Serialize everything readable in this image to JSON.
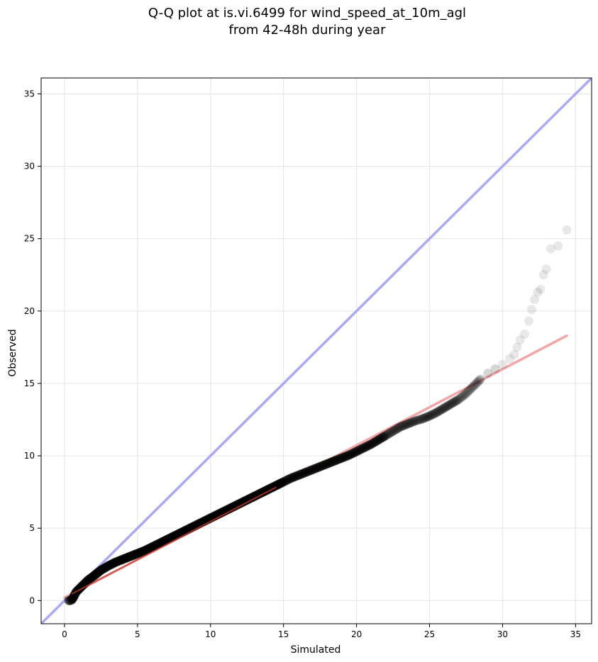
{
  "chart_data": {
    "type": "scatter",
    "title_line1": "Q-Q plot at is.vi.6499 for wind_speed_at_10m_agl",
    "title_line2": "from 42-48h during year",
    "xlabel": "Simulated",
    "ylabel": "Observed",
    "xlim": [
      -1.6,
      36.1
    ],
    "ylim": [
      -1.6,
      36.1
    ],
    "xticks": [
      0,
      5,
      10,
      15,
      20,
      25,
      30,
      35
    ],
    "yticks": [
      0,
      5,
      10,
      15,
      20,
      25,
      30,
      35
    ],
    "grid": true,
    "colors": {
      "points": "#000000",
      "one_to_one_line": "#a9a9f5",
      "fit_line": "#f2a6a6",
      "fit_line_dense": "#c0392b",
      "grid": "#e8e8e8",
      "axes": "#000000"
    },
    "one_to_one_line": {
      "name": "",
      "x": [
        -1.6,
        36.1
      ],
      "y": [
        -1.6,
        36.1
      ]
    },
    "fit_line": {
      "name": "",
      "x": [
        0.0,
        34.4
      ],
      "y": [
        0.2,
        18.3
      ]
    },
    "series": [
      {
        "name": "",
        "x": [
          0.3,
          0.4,
          0.5,
          0.6,
          0.7,
          0.8,
          1.0,
          1.3,
          1.6,
          2.0,
          2.5,
          3.0,
          3.5,
          4.0,
          4.5,
          5.0,
          5.5,
          6.0,
          6.5,
          7.0,
          7.5,
          8.0,
          8.5,
          9.0,
          9.5,
          10.0,
          10.5,
          11.0,
          11.5,
          12.0,
          12.5,
          13.0,
          13.5,
          14.0,
          14.5,
          15.0,
          15.5,
          16.0,
          16.5,
          17.0,
          17.5,
          18.0,
          18.5,
          19.0,
          19.5,
          20.0,
          20.5,
          21.0,
          21.5,
          22.0,
          22.5,
          23.0,
          23.5,
          24.0,
          24.5,
          25.0,
          25.5,
          26.0,
          26.5,
          27.0,
          27.5,
          28.0,
          28.5,
          29.0,
          29.5,
          30.0,
          30.5,
          30.8,
          31.0,
          31.2,
          31.5,
          31.8,
          32.0,
          32.2,
          32.4,
          32.6,
          32.8,
          33.0,
          33.3,
          33.8,
          34.4
        ],
        "y": [
          0.0,
          0.0,
          0.05,
          0.2,
          0.4,
          0.6,
          0.8,
          1.1,
          1.4,
          1.7,
          2.1,
          2.4,
          2.65,
          2.85,
          3.05,
          3.25,
          3.45,
          3.7,
          3.95,
          4.2,
          4.45,
          4.7,
          4.95,
          5.2,
          5.45,
          5.7,
          5.95,
          6.2,
          6.45,
          6.7,
          6.95,
          7.2,
          7.45,
          7.7,
          7.95,
          8.2,
          8.45,
          8.65,
          8.85,
          9.05,
          9.25,
          9.45,
          9.65,
          9.85,
          10.05,
          10.3,
          10.55,
          10.8,
          11.1,
          11.4,
          11.7,
          12.0,
          12.2,
          12.4,
          12.55,
          12.75,
          13.0,
          13.3,
          13.6,
          13.9,
          14.3,
          14.8,
          15.3,
          15.7,
          16.0,
          16.3,
          16.7,
          17.0,
          17.5,
          18.0,
          18.4,
          19.3,
          20.1,
          20.8,
          21.3,
          21.5,
          22.5,
          22.9,
          24.3,
          24.5,
          25.6
        ]
      }
    ]
  }
}
